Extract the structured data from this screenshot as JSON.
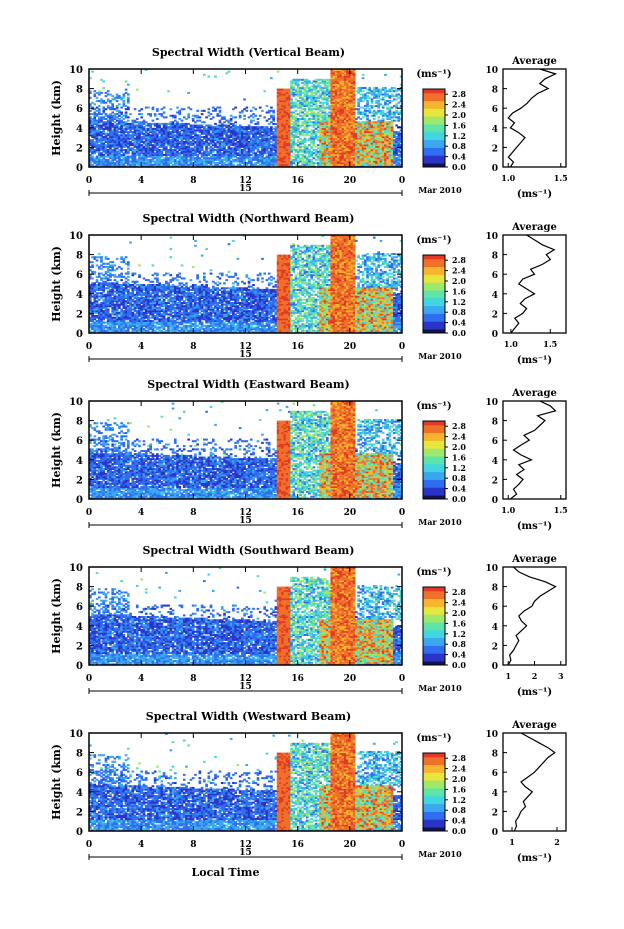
{
  "figure": {
    "x_axis_label": "Local Time",
    "month_label": "Mar 2010",
    "day_label": "15",
    "colorbar_unit": "(ms⁻¹)",
    "average_title": "Average",
    "average_unit": "(ms⁻¹)",
    "colormap": [
      "#1c1c6e",
      "#2a35c8",
      "#2f6ef0",
      "#3aa7f0",
      "#40d6e0",
      "#5fe3a8",
      "#9ee86a",
      "#e7e63c",
      "#f5b52c",
      "#f0702a",
      "#e33a28"
    ]
  },
  "chart_data": [
    {
      "type": "heatmap",
      "title": "Spectral Width (Vertical Beam)",
      "xlabel": "",
      "ylabel": "Height (km)",
      "x_ticks": [
        "0",
        "4",
        "8",
        "12",
        "16",
        "20",
        "0"
      ],
      "xlim": [
        0,
        24
      ],
      "y_ticks": [
        "0",
        "2",
        "4",
        "6",
        "8",
        "10"
      ],
      "ylim": [
        0,
        10
      ],
      "colorbar": {
        "min": 0,
        "max": 3,
        "ticks": [
          "0.0",
          "0.4",
          "0.8",
          "1.2",
          "1.6",
          "2.0",
          "2.4",
          "2.8"
        ]
      },
      "average_profile": {
        "x_ticks": [
          "1.0",
          "1.5"
        ],
        "xlim": [
          0.95,
          1.55
        ],
        "points": [
          [
            1.02,
            0
          ],
          [
            1.05,
            0.5
          ],
          [
            1.0,
            1
          ],
          [
            1.04,
            1.5
          ],
          [
            1.08,
            2
          ],
          [
            1.12,
            2.5
          ],
          [
            1.16,
            3
          ],
          [
            1.1,
            3.5
          ],
          [
            1.02,
            4
          ],
          [
            1.06,
            4.5
          ],
          [
            1.0,
            5
          ],
          [
            1.04,
            5.5
          ],
          [
            1.12,
            6
          ],
          [
            1.18,
            6.5
          ],
          [
            1.22,
            7
          ],
          [
            1.28,
            7.5
          ],
          [
            1.38,
            8
          ],
          [
            1.3,
            8.5
          ],
          [
            1.35,
            9
          ],
          [
            1.45,
            9.5
          ],
          [
            1.3,
            10
          ]
        ]
      }
    },
    {
      "type": "heatmap",
      "title": "Spectral Width (Northward Beam)",
      "xlabel": "",
      "ylabel": "Height (km)",
      "x_ticks": [
        "0",
        "4",
        "8",
        "12",
        "16",
        "20",
        "0"
      ],
      "xlim": [
        0,
        24
      ],
      "y_ticks": [
        "0",
        "2",
        "4",
        "6",
        "8",
        "10"
      ],
      "ylim": [
        0,
        10
      ],
      "colorbar": {
        "min": 0,
        "max": 3,
        "ticks": [
          "0.0",
          "0.4",
          "0.8",
          "1.2",
          "1.6",
          "2.0",
          "2.4",
          "2.8"
        ]
      },
      "average_profile": {
        "x_ticks": [
          "1.0",
          "1.5"
        ],
        "xlim": [
          0.9,
          1.7
        ],
        "points": [
          [
            1.0,
            0
          ],
          [
            1.05,
            0.5
          ],
          [
            1.1,
            1
          ],
          [
            1.05,
            1.5
          ],
          [
            1.15,
            2
          ],
          [
            1.2,
            2.5
          ],
          [
            1.12,
            3
          ],
          [
            1.18,
            3.5
          ],
          [
            1.3,
            4
          ],
          [
            1.2,
            4.5
          ],
          [
            1.1,
            5
          ],
          [
            1.15,
            5.5
          ],
          [
            1.3,
            6
          ],
          [
            1.25,
            6.5
          ],
          [
            1.4,
            7
          ],
          [
            1.5,
            7.5
          ],
          [
            1.45,
            8
          ],
          [
            1.55,
            8.5
          ],
          [
            1.4,
            9
          ],
          [
            1.3,
            9.5
          ],
          [
            1.2,
            10
          ]
        ]
      }
    },
    {
      "type": "heatmap",
      "title": "Spectral Width (Eastward Beam)",
      "xlabel": "",
      "ylabel": "Height (km)",
      "x_ticks": [
        "0",
        "4",
        "8",
        "12",
        "16",
        "20",
        "0"
      ],
      "xlim": [
        0,
        24
      ],
      "y_ticks": [
        "0",
        "2",
        "4",
        "6",
        "8",
        "10"
      ],
      "ylim": [
        0,
        10
      ],
      "colorbar": {
        "min": 0,
        "max": 3,
        "ticks": [
          "0.0",
          "0.4",
          "0.8",
          "1.2",
          "1.6",
          "2.0",
          "2.4",
          "2.8"
        ]
      },
      "average_profile": {
        "x_ticks": [
          "1.0",
          "1.5"
        ],
        "xlim": [
          0.95,
          1.55
        ],
        "points": [
          [
            1.02,
            0
          ],
          [
            1.08,
            0.5
          ],
          [
            1.05,
            1
          ],
          [
            1.1,
            1.5
          ],
          [
            1.14,
            2
          ],
          [
            1.08,
            2.5
          ],
          [
            1.15,
            3
          ],
          [
            1.1,
            3.5
          ],
          [
            1.22,
            4
          ],
          [
            1.12,
            4.5
          ],
          [
            1.05,
            5
          ],
          [
            1.12,
            5.5
          ],
          [
            1.2,
            6
          ],
          [
            1.15,
            6.5
          ],
          [
            1.25,
            7
          ],
          [
            1.3,
            7.5
          ],
          [
            1.35,
            8
          ],
          [
            1.28,
            8.5
          ],
          [
            1.45,
            9
          ],
          [
            1.4,
            9.5
          ],
          [
            1.3,
            10
          ]
        ]
      }
    },
    {
      "type": "heatmap",
      "title": "Spectral Width (Southward Beam)",
      "xlabel": "",
      "ylabel": "Height (km)",
      "x_ticks": [
        "0",
        "4",
        "8",
        "12",
        "16",
        "20",
        "0"
      ],
      "xlim": [
        0,
        24
      ],
      "y_ticks": [
        "0",
        "2",
        "4",
        "6",
        "8",
        "10"
      ],
      "ylim": [
        0,
        10
      ],
      "colorbar": {
        "min": 0,
        "max": 3,
        "ticks": [
          "0.0",
          "0.4",
          "0.8",
          "1.2",
          "1.6",
          "2.0",
          "2.4",
          "2.8"
        ]
      },
      "average_profile": {
        "x_ticks": [
          "1",
          "2",
          "3"
        ],
        "xlim": [
          0.8,
          3.2
        ],
        "points": [
          [
            1.0,
            0
          ],
          [
            1.1,
            0.5
          ],
          [
            1.05,
            1
          ],
          [
            1.2,
            1.5
          ],
          [
            1.3,
            2
          ],
          [
            1.4,
            2.5
          ],
          [
            1.3,
            3
          ],
          [
            1.5,
            3.5
          ],
          [
            1.7,
            4
          ],
          [
            1.5,
            4.5
          ],
          [
            1.4,
            5
          ],
          [
            1.6,
            5.5
          ],
          [
            1.9,
            6
          ],
          [
            2.0,
            6.5
          ],
          [
            2.2,
            7
          ],
          [
            2.5,
            7.5
          ],
          [
            2.8,
            8
          ],
          [
            2.4,
            8.5
          ],
          [
            1.8,
            9
          ],
          [
            1.4,
            9.5
          ],
          [
            1.2,
            10
          ]
        ]
      }
    },
    {
      "type": "heatmap",
      "title": "Spectral Width (Westward Beam)",
      "xlabel": "Local Time",
      "ylabel": "Height (km)",
      "x_ticks": [
        "0",
        "4",
        "8",
        "12",
        "16",
        "20",
        "0"
      ],
      "xlim": [
        0,
        24
      ],
      "y_ticks": [
        "0",
        "2",
        "4",
        "6",
        "8",
        "10"
      ],
      "ylim": [
        0,
        10
      ],
      "colorbar": {
        "min": 0,
        "max": 3,
        "ticks": [
          "0.0",
          "0.4",
          "0.8",
          "1.2",
          "1.6",
          "2.0",
          "2.4",
          "2.8"
        ]
      },
      "average_profile": {
        "x_ticks": [
          "1",
          "2"
        ],
        "xlim": [
          0.8,
          2.2
        ],
        "points": [
          [
            1.05,
            0
          ],
          [
            1.1,
            0.5
          ],
          [
            1.08,
            1
          ],
          [
            1.15,
            1.5
          ],
          [
            1.2,
            2
          ],
          [
            1.3,
            2.5
          ],
          [
            1.25,
            3
          ],
          [
            1.35,
            3.5
          ],
          [
            1.45,
            4
          ],
          [
            1.3,
            4.5
          ],
          [
            1.2,
            5
          ],
          [
            1.35,
            5.5
          ],
          [
            1.5,
            6
          ],
          [
            1.6,
            6.5
          ],
          [
            1.7,
            7
          ],
          [
            1.8,
            7.5
          ],
          [
            1.95,
            8
          ],
          [
            1.8,
            8.5
          ],
          [
            1.6,
            9
          ],
          [
            1.4,
            9.5
          ],
          [
            1.2,
            10
          ]
        ]
      }
    }
  ]
}
